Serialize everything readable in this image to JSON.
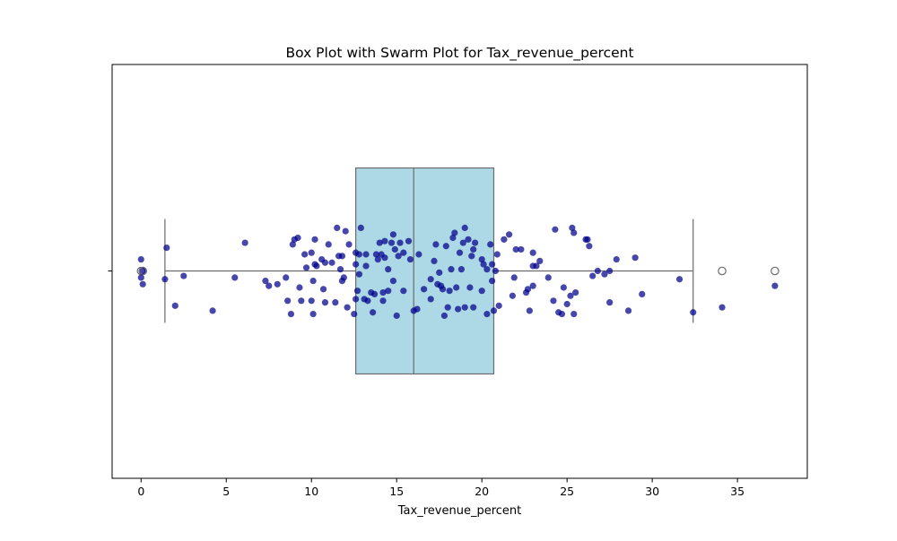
{
  "chart_data": {
    "type": "box",
    "title": "Box Plot with Swarm Plot for Tax_revenue_percent",
    "xlabel": "Tax_revenue_percent",
    "ylabel": "",
    "xlim": [
      -1.7,
      39.1
    ],
    "xticks": [
      0,
      5,
      10,
      15,
      20,
      25,
      30,
      35
    ],
    "grid": false,
    "legend": "none",
    "box": {
      "whisker_low": 1.4,
      "q1": 12.6,
      "median": 16.0,
      "q3": 20.7,
      "whisker_high": 32.4,
      "outliers": [
        0.0,
        0.1,
        34.1,
        37.2
      ],
      "fill_color": "#add8e6",
      "line_color": "#6b6b6b"
    },
    "swarm": {
      "color": "#00008b",
      "points": [
        [
          0.0,
          0.35
        ],
        [
          0.1,
          0.0
        ],
        [
          0.0,
          -0.2
        ],
        [
          0.1,
          -0.4
        ],
        [
          1.4,
          -0.25
        ],
        [
          1.5,
          0.7
        ],
        [
          2.0,
          -1.05
        ],
        [
          2.5,
          -0.15
        ],
        [
          4.2,
          -1.2
        ],
        [
          5.5,
          -0.2
        ],
        [
          6.1,
          0.85
        ],
        [
          7.3,
          -0.3
        ],
        [
          7.5,
          -0.45
        ],
        [
          8.0,
          -0.4
        ],
        [
          8.5,
          -0.2
        ],
        [
          8.6,
          -0.9
        ],
        [
          8.8,
          -1.3
        ],
        [
          8.9,
          0.8
        ],
        [
          9.0,
          0.95
        ],
        [
          9.2,
          1.0
        ],
        [
          9.3,
          -0.5
        ],
        [
          9.4,
          -0.9
        ],
        [
          9.6,
          0.5
        ],
        [
          9.7,
          0.1
        ],
        [
          10.0,
          0.55
        ],
        [
          10.1,
          -0.3
        ],
        [
          10.1,
          -1.3
        ],
        [
          10.2,
          0.2
        ],
        [
          10.3,
          0.15
        ],
        [
          10.2,
          0.95
        ],
        [
          10.0,
          -0.9
        ],
        [
          10.6,
          0.35
        ],
        [
          10.7,
          -0.55
        ],
        [
          10.8,
          0.25
        ],
        [
          10.8,
          -0.95
        ],
        [
          11.0,
          0.8
        ],
        [
          11.2,
          0.25
        ],
        [
          11.4,
          -0.95
        ],
        [
          11.5,
          1.3
        ],
        [
          11.6,
          0.45
        ],
        [
          11.7,
          0.05
        ],
        [
          11.8,
          -0.3
        ],
        [
          11.8,
          0.45
        ],
        [
          11.9,
          -0.2
        ],
        [
          12.0,
          1.2
        ],
        [
          12.1,
          -1.1
        ],
        [
          12.2,
          0.8
        ],
        [
          12.5,
          -1.3
        ],
        [
          12.6,
          0.2
        ],
        [
          12.6,
          -0.85
        ],
        [
          12.7,
          -0.6
        ],
        [
          12.6,
          0.55
        ],
        [
          12.8,
          0.5
        ],
        [
          12.8,
          -0.1
        ],
        [
          12.9,
          1.3
        ],
        [
          13.1,
          -0.85
        ],
        [
          13.2,
          0.15
        ],
        [
          13.2,
          0.5
        ],
        [
          13.3,
          -0.9
        ],
        [
          13.5,
          -0.65
        ],
        [
          13.6,
          -1.25
        ],
        [
          13.7,
          -0.7
        ],
        [
          13.8,
          0.5
        ],
        [
          13.9,
          0.35
        ],
        [
          14.0,
          0.85
        ],
        [
          14.1,
          0.5
        ],
        [
          14.2,
          -0.65
        ],
        [
          14.2,
          -0.9
        ],
        [
          14.3,
          0.9
        ],
        [
          14.3,
          0.4
        ],
        [
          14.5,
          -0.6
        ],
        [
          14.5,
          0.05
        ],
        [
          14.7,
          0.85
        ],
        [
          14.8,
          -0.3
        ],
        [
          14.8,
          1.1
        ],
        [
          14.9,
          0.65
        ],
        [
          15.0,
          -1.35
        ],
        [
          15.1,
          0.45
        ],
        [
          15.2,
          0.85
        ],
        [
          15.4,
          -0.6
        ],
        [
          15.4,
          0.55
        ],
        [
          15.7,
          0.9
        ],
        [
          15.8,
          0.35
        ],
        [
          16.0,
          -1.2
        ],
        [
          16.2,
          -1.15
        ],
        [
          16.3,
          0.5
        ],
        [
          16.6,
          -0.55
        ],
        [
          17.0,
          -0.25
        ],
        [
          17.0,
          -0.85
        ],
        [
          17.2,
          0.3
        ],
        [
          17.3,
          0.8
        ],
        [
          17.4,
          -0.4
        ],
        [
          17.5,
          -0.05
        ],
        [
          17.6,
          -0.45
        ],
        [
          17.7,
          -0.55
        ],
        [
          17.8,
          -1.35
        ],
        [
          17.9,
          0.75
        ],
        [
          18.0,
          -1.1
        ],
        [
          18.1,
          -0.6
        ],
        [
          18.2,
          0.05
        ],
        [
          18.3,
          1.0
        ],
        [
          18.4,
          1.15
        ],
        [
          18.5,
          -0.5
        ],
        [
          18.6,
          -1.15
        ],
        [
          18.7,
          0.55
        ],
        [
          18.8,
          0.05
        ],
        [
          18.9,
          0.85
        ],
        [
          19.0,
          -1.1
        ],
        [
          19.0,
          1.3
        ],
        [
          19.2,
          0.95
        ],
        [
          19.3,
          -0.5
        ],
        [
          19.4,
          0.45
        ],
        [
          19.5,
          0.65
        ],
        [
          19.5,
          -1.1
        ],
        [
          19.6,
          0.85
        ],
        [
          20.0,
          0.35
        ],
        [
          20.0,
          -0.6
        ],
        [
          20.1,
          0.2
        ],
        [
          20.3,
          0.05
        ],
        [
          20.3,
          -1.3
        ],
        [
          20.5,
          0.8
        ],
        [
          20.6,
          -0.3
        ],
        [
          20.6,
          0.2
        ],
        [
          20.7,
          -1.2
        ],
        [
          20.8,
          0.0
        ],
        [
          20.9,
          0.5
        ],
        [
          21.0,
          -1.05
        ],
        [
          21.3,
          0.95
        ],
        [
          21.6,
          1.1
        ],
        [
          21.8,
          -0.75
        ],
        [
          21.9,
          -0.2
        ],
        [
          22.0,
          0.65
        ],
        [
          22.3,
          0.65
        ],
        [
          22.6,
          -0.65
        ],
        [
          22.7,
          -0.55
        ],
        [
          22.8,
          -1.2
        ],
        [
          23.0,
          -0.45
        ],
        [
          23.0,
          0.15
        ],
        [
          23.0,
          0.55
        ],
        [
          23.2,
          0.15
        ],
        [
          23.4,
          0.3
        ],
        [
          23.9,
          -0.2
        ],
        [
          24.2,
          -0.9
        ],
        [
          24.3,
          1.25
        ],
        [
          24.5,
          -1.25
        ],
        [
          24.7,
          -1.3
        ],
        [
          24.8,
          -0.5
        ],
        [
          25.0,
          -1.0
        ],
        [
          25.2,
          -0.75
        ],
        [
          25.4,
          -1.3
        ],
        [
          25.5,
          -0.65
        ],
        [
          25.3,
          1.3
        ],
        [
          25.4,
          1.15
        ],
        [
          26.1,
          0.95
        ],
        [
          26.2,
          0.95
        ],
        [
          26.3,
          0.75
        ],
        [
          26.5,
          -0.15
        ],
        [
          26.8,
          0.0
        ],
        [
          27.2,
          -0.1
        ],
        [
          27.5,
          -0.95
        ],
        [
          27.5,
          0.0
        ],
        [
          27.9,
          0.35
        ],
        [
          28.6,
          -1.2
        ],
        [
          29.0,
          0.4
        ],
        [
          29.4,
          -0.7
        ],
        [
          31.6,
          -0.25
        ],
        [
          32.4,
          -1.25
        ],
        [
          34.1,
          -1.1
        ],
        [
          37.2,
          -0.45
        ]
      ]
    }
  }
}
